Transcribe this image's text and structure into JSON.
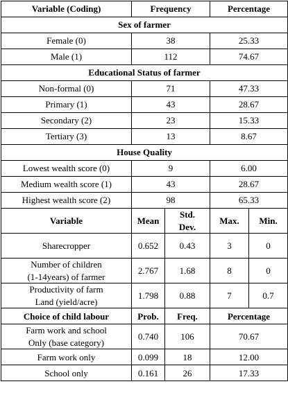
{
  "header": [
    "Variable (Coding)",
    "Frequency",
    "Percentage"
  ],
  "sections": [
    {
      "title": "Sex of farmer",
      "rows": [
        [
          "Female (0)",
          "38",
          "25.33"
        ],
        [
          "Male (1)",
          "112",
          "74.67"
        ]
      ]
    },
    {
      "title": "Educational Status of farmer",
      "rows": [
        [
          "Non-formal (0)",
          "71",
          "47.33"
        ],
        [
          "Primary (1)",
          "43",
          "28.67"
        ],
        [
          "Secondary (2)",
          "23",
          "15.33"
        ],
        [
          "Tertiary (3)",
          "13",
          "8.67"
        ]
      ]
    },
    {
      "title": "House Quality",
      "rows": [
        [
          "Lowest wealth score (0)",
          "9",
          "6.00"
        ],
        [
          "Medium wealth score (1)",
          "43",
          "28.67"
        ],
        [
          "Highest wealth score (2)",
          "98",
          "65.33"
        ]
      ]
    }
  ],
  "stats": {
    "header": [
      "Variable",
      "Mean",
      "Std.\nDev.",
      "Max.",
      "Min."
    ],
    "rows": [
      [
        "Sharecropper",
        "0.652",
        "0.43",
        "3",
        "0"
      ],
      [
        "Number of children\n(1-14years) of farmer",
        "2.767",
        "1.68",
        "8",
        "0"
      ],
      [
        "Productivity of farm\nLand (yield/acre)",
        "1.798",
        "0.88",
        "7",
        "0.7"
      ]
    ]
  },
  "choice": {
    "header": [
      "Choice of child labour",
      "Prob.",
      "Freq.",
      "Percentage"
    ],
    "rows": [
      [
        "Farm work and school\nOnly (base category)",
        "0.740",
        "106",
        "70.67"
      ],
      [
        "Farm work only",
        "0.099",
        "18",
        "12.00"
      ],
      [
        "School only",
        "0.161",
        "26",
        "17.33"
      ]
    ]
  }
}
